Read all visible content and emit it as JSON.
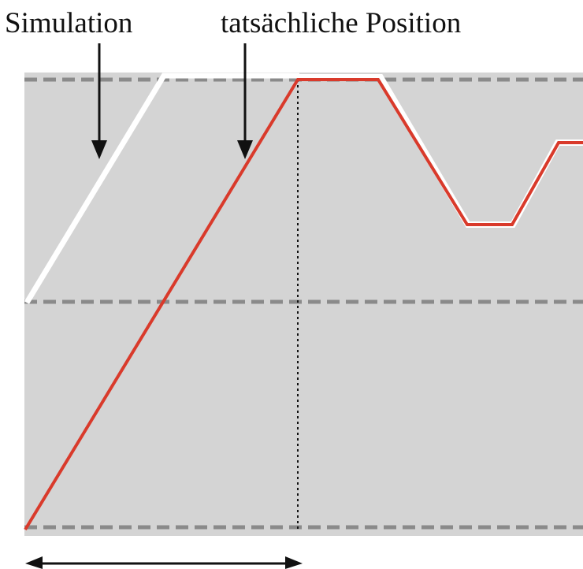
{
  "labels": {
    "simulation": "Simulation",
    "actual_position": "tatsächliche Position"
  },
  "colors": {
    "background": "#ffffff",
    "plot_area": "#d4d4d4",
    "dashed_level": "#8a8a8a",
    "simulation_line": "#ffffff",
    "actual_line": "#d93a2b",
    "arrows": "#111111"
  }
}
